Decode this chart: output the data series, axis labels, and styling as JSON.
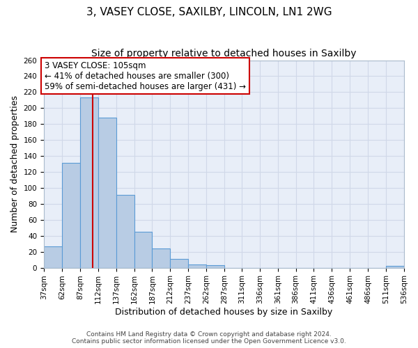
{
  "title1": "3, VASEY CLOSE, SAXILBY, LINCOLN, LN1 2WG",
  "title2": "Size of property relative to detached houses in Saxilby",
  "xlabel": "Distribution of detached houses by size in Saxilby",
  "ylabel": "Number of detached properties",
  "bar_values": [
    27,
    131,
    213,
    188,
    91,
    45,
    24,
    11,
    4,
    3,
    0,
    0,
    0,
    0,
    0,
    0,
    0,
    0,
    0,
    2,
    0
  ],
  "bin_edges": [
    37,
    62,
    87,
    112,
    137,
    162,
    187,
    212,
    237,
    262,
    287,
    311,
    336,
    361,
    386,
    411,
    436,
    461,
    486,
    511,
    536
  ],
  "tick_labels": [
    "37sqm",
    "62sqm",
    "87sqm",
    "112sqm",
    "137sqm",
    "162sqm",
    "187sqm",
    "212sqm",
    "237sqm",
    "262sqm",
    "287sqm",
    "311sqm",
    "336sqm",
    "361sqm",
    "386sqm",
    "411sqm",
    "436sqm",
    "461sqm",
    "486sqm",
    "511sqm",
    "536sqm"
  ],
  "bar_color": "#b8cce4",
  "bar_edge_color": "#5b9bd5",
  "grid_color": "#d0d8e8",
  "plot_bg_color": "#e8eef8",
  "fig_bg_color": "#ffffff",
  "property_line_x": 105,
  "property_line_color": "#cc0000",
  "annotation_text": "3 VASEY CLOSE: 105sqm\n← 41% of detached houses are smaller (300)\n59% of semi-detached houses are larger (431) →",
  "annotation_box_color": "#ffffff",
  "annotation_box_edge_color": "#cc0000",
  "ylim": [
    0,
    260
  ],
  "yticks": [
    0,
    20,
    40,
    60,
    80,
    100,
    120,
    140,
    160,
    180,
    200,
    220,
    240,
    260
  ],
  "footer1": "Contains HM Land Registry data © Crown copyright and database right 2024.",
  "footer2": "Contains public sector information licensed under the Open Government Licence v3.0.",
  "title_fontsize": 11,
  "subtitle_fontsize": 10,
  "axis_label_fontsize": 9,
  "tick_fontsize": 7.5,
  "annotation_fontsize": 8.5
}
